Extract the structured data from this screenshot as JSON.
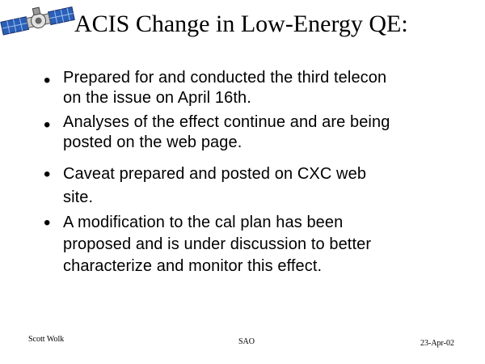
{
  "slide": {
    "title": "ACIS Change in Low-Energy QE:",
    "logo_icon": "satellite-icon",
    "bullets": [
      {
        "glyph": "•",
        "lines": [
          "Prepared for and conducted the third telecon",
          "on the issue on April 16th."
        ]
      },
      {
        "glyph": "•",
        "lines": [
          "Analyses of the effect continue and are being",
          "posted on the web page."
        ]
      },
      {
        "glyph": "•",
        "lines": [
          "Caveat prepared and posted on CXC web",
          "site."
        ]
      },
      {
        "glyph": "•",
        "lines": [
          "A modification to the cal plan has been",
          "proposed and is under discussion to better",
          "characterize and monitor this effect."
        ]
      }
    ],
    "footer": {
      "author": "Scott Wolk",
      "org": "SAO",
      "date": "23-Apr-02"
    }
  }
}
